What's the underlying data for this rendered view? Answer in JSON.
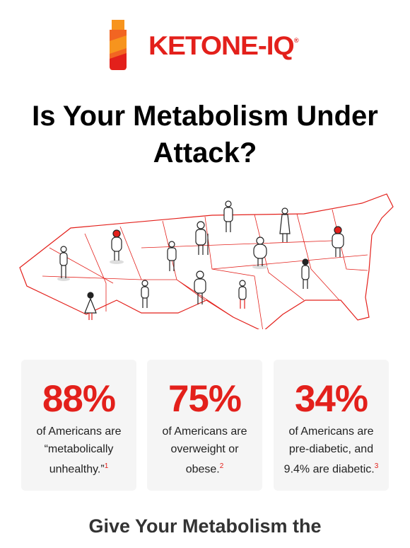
{
  "logo": {
    "text": "KETONE-IQ",
    "mark": "®"
  },
  "title": "Is Your Metabolism Under Attack?",
  "stats": [
    {
      "value": "88%",
      "text": "of Americans are “metabolically unhealthy.”",
      "note": "1"
    },
    {
      "value": "75%",
      "text": "of Americans are overweight or obese.",
      "note": "2"
    },
    {
      "value": "34%",
      "text": "of Americans are pre-diabetic, and 9.4% are diabetic.",
      "note": "3"
    }
  ],
  "subheading": "Give Your Metabolism the"
}
